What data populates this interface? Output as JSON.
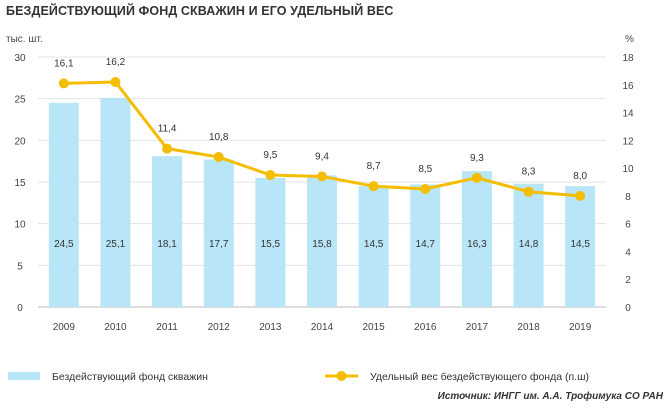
{
  "title": "БЕЗДЕЙСТВУЮЩИЙ ФОНД СКВАЖИН И ЕГО УДЕЛЬНЫЙ ВЕС",
  "source": "Источник: ИНГГ им. А.А. Трофимука СО РАН",
  "chart_data": {
    "type": "bar+line",
    "categories": [
      "2009",
      "2010",
      "2011",
      "2012",
      "2013",
      "2014",
      "2015",
      "2016",
      "2017",
      "2018",
      "2019"
    ],
    "left_axis": {
      "unit": "тыс. шт.",
      "ylim": [
        0,
        30
      ],
      "ticks": [
        "0",
        "5",
        "10",
        "15",
        "20",
        "25",
        "30"
      ]
    },
    "right_axis": {
      "unit": "%",
      "ylim": [
        0,
        18
      ],
      "ticks": [
        "0",
        "2",
        "4",
        "6",
        "8",
        "10",
        "12",
        "14",
        "16",
        "18"
      ]
    },
    "series": [
      {
        "name": "Бездействующий фонд скважин",
        "type": "bar",
        "axis": "left",
        "color": "#b8e6f8",
        "values": [
          24.5,
          25.1,
          18.1,
          17.7,
          15.5,
          15.8,
          14.5,
          14.7,
          16.3,
          14.8,
          14.5
        ],
        "labels": [
          "24,5",
          "25,1",
          "18,1",
          "17,7",
          "15,5",
          "15,8",
          "14,5",
          "14,7",
          "16,3",
          "14,8",
          "14,5"
        ]
      },
      {
        "name": "Удельный вес бездействующего фонда (п.ш)",
        "type": "line",
        "axis": "right",
        "color": "#f5bd00",
        "values": [
          16.1,
          16.2,
          11.4,
          10.8,
          9.5,
          9.4,
          8.7,
          8.5,
          9.3,
          8.3,
          8.0
        ],
        "labels": [
          "16,1",
          "16,2",
          "11,4",
          "10,8",
          "9,5",
          "9,4",
          "8,7",
          "8,5",
          "9,3",
          "8,3",
          "8,0"
        ]
      }
    ],
    "grid": true,
    "legend_position": "bottom"
  }
}
